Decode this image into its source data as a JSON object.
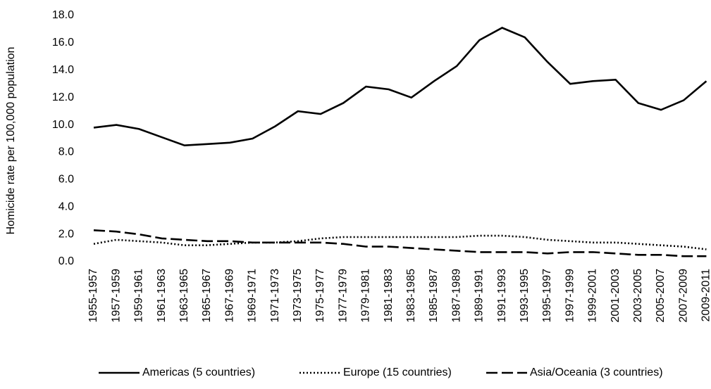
{
  "chart_data": {
    "type": "line",
    "y_label": "Homicide rate per 100,000 population",
    "categories": [
      "1955-1957",
      "1957-1959",
      "1959-1961",
      "1961-1963",
      "1963-1965",
      "1965-1967",
      "1967-1969",
      "1969-1971",
      "1971-1973",
      "1973-1975",
      "1975-1977",
      "1977-1979",
      "1979-1981",
      "1981-1983",
      "1983-1985",
      "1985-1987",
      "1987-1989",
      "1989-1991",
      "1991-1993",
      "1993-1995",
      "1995-1997",
      "1997-1999",
      "1999-2001",
      "2001-2003",
      "2003-2005",
      "2005-2007",
      "2007-2009",
      "2009-2011"
    ],
    "series": [
      {
        "name": "Americas (5 countries)",
        "color": "#000000",
        "dash": "solid",
        "values": [
          9.8,
          10.0,
          9.7,
          9.1,
          8.5,
          8.6,
          8.7,
          9.0,
          9.9,
          11.0,
          10.8,
          11.6,
          12.8,
          12.6,
          12.0,
          13.2,
          14.3,
          16.2,
          17.1,
          16.4,
          14.6,
          13.0,
          13.2,
          13.3,
          11.6,
          11.1,
          11.8,
          13.2
        ]
      },
      {
        "name": "Europe (15 countries)",
        "color": "#000000",
        "dash": "dotted",
        "values": [
          1.3,
          1.6,
          1.5,
          1.4,
          1.2,
          1.2,
          1.3,
          1.4,
          1.4,
          1.5,
          1.7,
          1.8,
          1.8,
          1.8,
          1.8,
          1.8,
          1.8,
          1.9,
          1.9,
          1.8,
          1.6,
          1.5,
          1.4,
          1.4,
          1.3,
          1.2,
          1.1,
          0.9
        ]
      },
      {
        "name": "Asia/Oceania (3 countries)",
        "color": "#000000",
        "dash": "dashed",
        "values": [
          2.3,
          2.2,
          2.0,
          1.7,
          1.6,
          1.5,
          1.5,
          1.4,
          1.4,
          1.4,
          1.4,
          1.3,
          1.1,
          1.1,
          1.0,
          0.9,
          0.8,
          0.7,
          0.7,
          0.7,
          0.6,
          0.7,
          0.7,
          0.6,
          0.5,
          0.5,
          0.4,
          0.4
        ]
      }
    ],
    "ylim": [
      0,
      18
    ],
    "yticks": [
      {
        "value": 0,
        "label": "0.0"
      },
      {
        "value": 2,
        "label": "2.0"
      },
      {
        "value": 4,
        "label": "4.0"
      },
      {
        "value": 6,
        "label": "6.0"
      },
      {
        "value": 8,
        "label": "8.0"
      },
      {
        "value": 10,
        "label": "10.0"
      },
      {
        "value": 12,
        "label": "12.0"
      },
      {
        "value": 14,
        "label": "14.0"
      },
      {
        "value": 16,
        "label": "16.0"
      },
      {
        "value": 18,
        "label": "18.0"
      }
    ],
    "grid": false,
    "legend": "bottom"
  }
}
